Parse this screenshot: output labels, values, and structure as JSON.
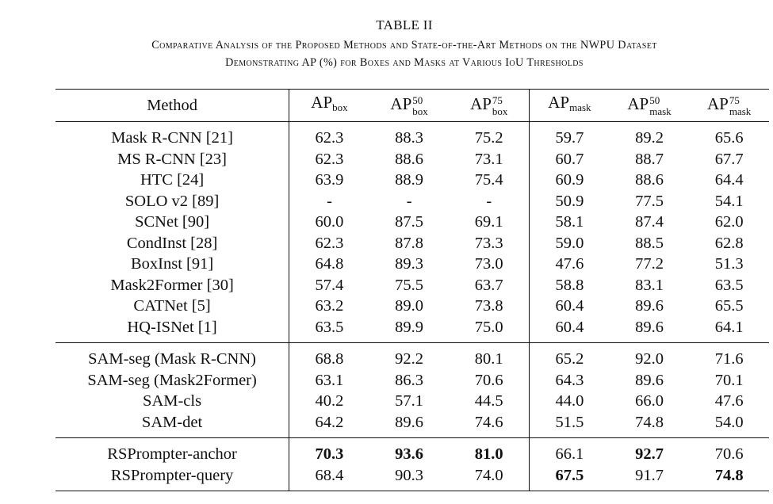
{
  "table_label": "TABLE II",
  "caption_line1": "Comparative Analysis of the Proposed Methods and State-of-the-Art Methods on the NWPU Dataset",
  "caption_line2": "Demonstrating AP (%) for Boxes and Masks at Various IoU Thresholds",
  "header": {
    "method": "Method",
    "ap": "AP",
    "box": "box",
    "mask": "mask",
    "iou50": "50",
    "iou75": "75"
  },
  "groups": [
    {
      "rows": [
        {
          "method": "Mask R-CNN [21]",
          "values": [
            "62.3",
            "88.3",
            "75.2",
            "59.7",
            "89.2",
            "65.6"
          ]
        },
        {
          "method": "MS R-CNN [23]",
          "values": [
            "62.3",
            "88.6",
            "73.1",
            "60.7",
            "88.7",
            "67.7"
          ]
        },
        {
          "method": "HTC [24]",
          "values": [
            "63.9",
            "88.9",
            "75.4",
            "60.9",
            "88.6",
            "64.4"
          ]
        },
        {
          "method": "SOLO v2 [89]",
          "values": [
            "-",
            "-",
            "-",
            "50.9",
            "77.5",
            "54.1"
          ]
        },
        {
          "method": "SCNet [90]",
          "values": [
            "60.0",
            "87.5",
            "69.1",
            "58.1",
            "87.4",
            "62.0"
          ]
        },
        {
          "method": "CondInst [28]",
          "values": [
            "62.3",
            "87.8",
            "73.3",
            "59.0",
            "88.5",
            "62.8"
          ]
        },
        {
          "method": "BoxInst [91]",
          "values": [
            "64.8",
            "89.3",
            "73.0",
            "47.6",
            "77.2",
            "51.3"
          ]
        },
        {
          "method": "Mask2Former [30]",
          "values": [
            "57.4",
            "75.5",
            "63.7",
            "58.8",
            "83.1",
            "63.5"
          ]
        },
        {
          "method": "CATNet [5]",
          "values": [
            "63.2",
            "89.0",
            "73.8",
            "60.4",
            "89.6",
            "65.5"
          ]
        },
        {
          "method": "HQ-ISNet [1]",
          "values": [
            "63.5",
            "89.9",
            "75.0",
            "60.4",
            "89.6",
            "64.1"
          ]
        }
      ]
    },
    {
      "rows": [
        {
          "method": "SAM-seg (Mask R-CNN)",
          "values": [
            "68.8",
            "92.2",
            "80.1",
            "65.2",
            "92.0",
            "71.6"
          ]
        },
        {
          "method": "SAM-seg (Mask2Former)",
          "values": [
            "63.1",
            "86.3",
            "70.6",
            "64.3",
            "89.6",
            "70.1"
          ]
        },
        {
          "method": "SAM-cls",
          "values": [
            "40.2",
            "57.1",
            "44.5",
            "44.0",
            "66.0",
            "47.6"
          ]
        },
        {
          "method": "SAM-det",
          "values": [
            "64.2",
            "89.6",
            "74.6",
            "51.5",
            "74.8",
            "54.0"
          ]
        }
      ]
    },
    {
      "rows": [
        {
          "method": "RSPrompter-anchor",
          "values": [
            "70.3",
            "93.6",
            "81.0",
            "66.1",
            "92.7",
            "70.6"
          ],
          "bold": [
            true,
            true,
            true,
            false,
            true,
            false
          ]
        },
        {
          "method": "RSPrompter-query",
          "values": [
            "68.4",
            "90.3",
            "74.0",
            "67.5",
            "91.7",
            "74.8"
          ],
          "bold": [
            false,
            false,
            false,
            true,
            false,
            true
          ]
        }
      ]
    }
  ]
}
